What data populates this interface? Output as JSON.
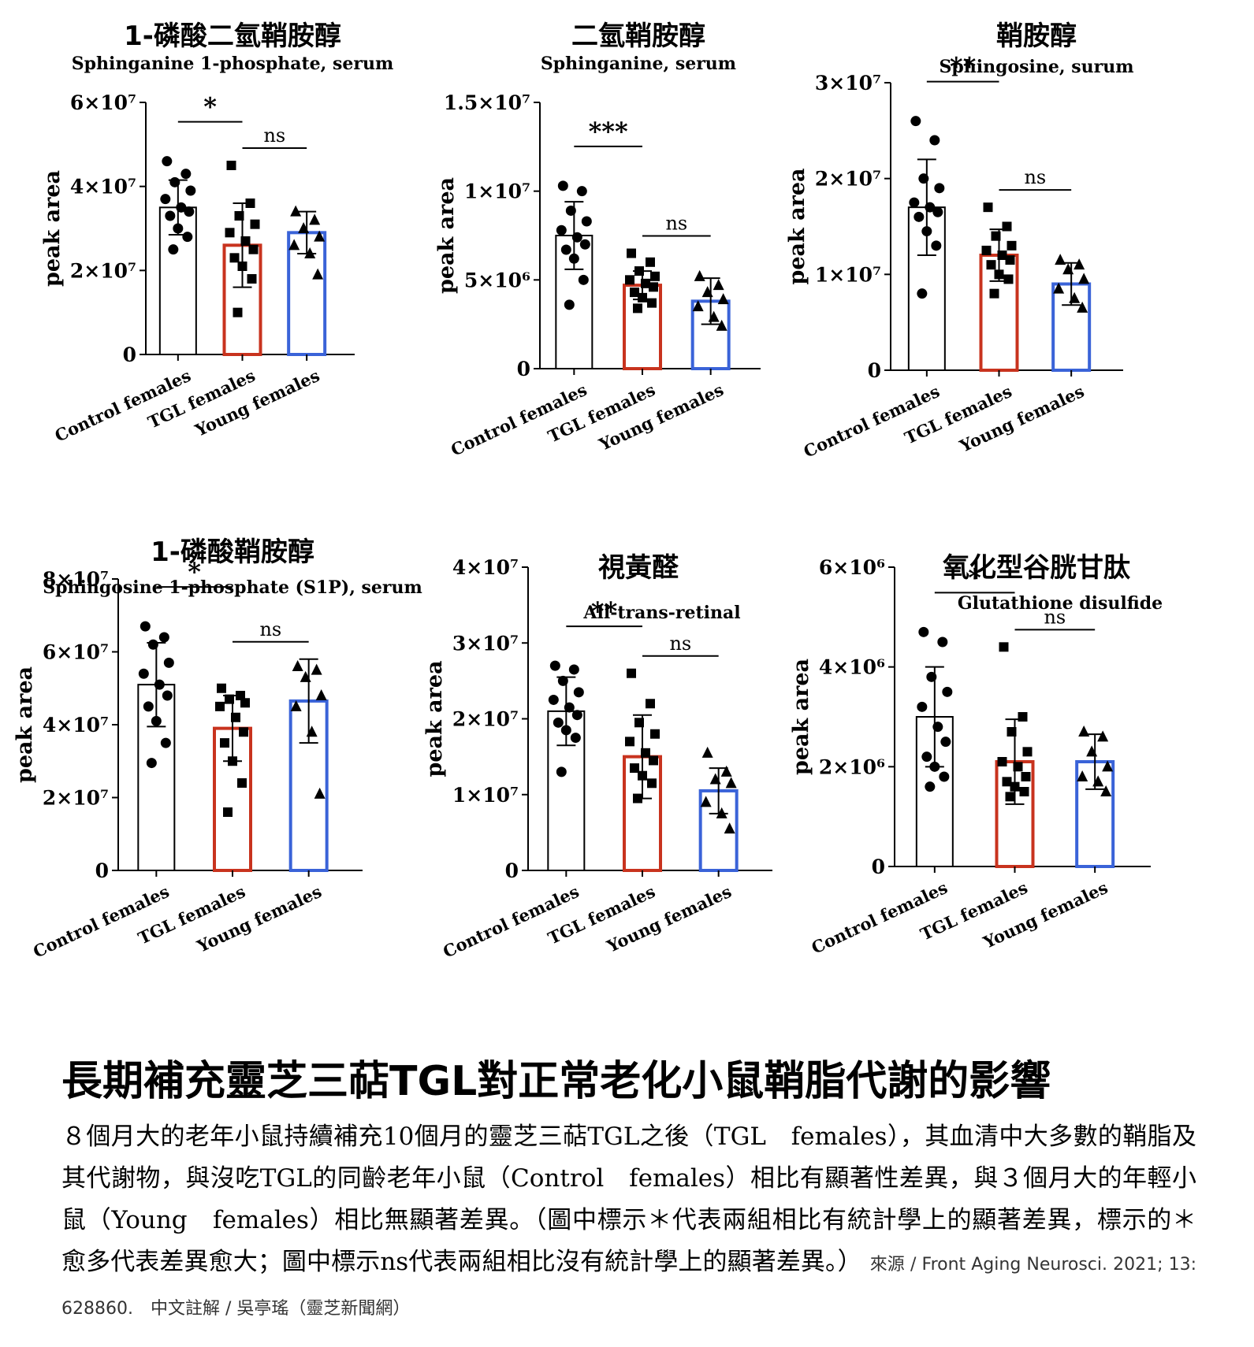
{
  "headline": "長期補充靈芝三萜TGL對正常老化小鼠鞘脂代謝的影響",
  "paragraph": "８個月大的老年小鼠持續補充10個月的靈芝三萜TGL之後（TGL　females），其血清中大多數的鞘脂及其代謝物，與沒吃TGL的同齡老年小鼠（Control　females）相比有顯著性差異，與３個月大的年輕小鼠（Young　females）相比無顯著差異。（圖中標示＊代表兩組相比有統計學上的顯著差異，標示的＊愈多代表差異愈大；圖中標示ns代表兩組相比沒有統計學上的顯著差異。）",
  "source": "來源 / Front Aging Neurosci. 2021; 13: 628860.　中文註解 / 吳亭瑤（靈芝新聞網）",
  "colors": {
    "control": "#000000",
    "tgl": "#c8331e",
    "young": "#3a63d8"
  },
  "chart_data": [
    {
      "type": "bar",
      "title_zh": "1-磷酸二氫鞘胺醇",
      "title": "Sphinganine 1-phosphate, serum",
      "ylabel": "peak area",
      "ylim": [
        0,
        60000000
      ],
      "yticks": [
        0,
        20000000,
        40000000,
        60000000
      ],
      "ytick_labels": [
        "0",
        "2×10⁷",
        "4×10⁷",
        "6×10⁷"
      ],
      "categories": [
        "Control females",
        "TGL females",
        "Young females"
      ],
      "values": [
        35000000,
        26000000,
        29000000
      ],
      "errors": [
        6500000,
        10000000,
        5000000
      ],
      "markers": [
        "circle",
        "square",
        "triangle"
      ],
      "points": [
        [
          46000000,
          43000000,
          41000000,
          39000000,
          37000000,
          35000000,
          34000000,
          33000000,
          30000000,
          28000000,
          25000000
        ],
        [
          45000000,
          36000000,
          33000000,
          31000000,
          29000000,
          27000000,
          25000000,
          23000000,
          21000000,
          18000000,
          10000000
        ],
        [
          34000000,
          32000000,
          30000000,
          28000000,
          26000000,
          24000000,
          19000000
        ]
      ],
      "significance": [
        {
          "from": 0,
          "to": 1,
          "label": "*"
        },
        {
          "from": 1,
          "to": 2,
          "label": "ns"
        }
      ]
    },
    {
      "type": "bar",
      "title_zh": "二氫鞘胺醇",
      "title": "Sphinganine, serum",
      "ylabel": "peak area",
      "ylim": [
        0,
        15000000
      ],
      "yticks": [
        0,
        5000000,
        10000000,
        15000000
      ],
      "ytick_labels": [
        "0",
        "5×10⁶",
        "1×10⁷",
        "1.5×10⁷"
      ],
      "categories": [
        "Control females",
        "TGL females",
        "Young females"
      ],
      "values": [
        7500000,
        4700000,
        3800000
      ],
      "errors": [
        1900000,
        800000,
        1300000
      ],
      "markers": [
        "circle",
        "square",
        "triangle"
      ],
      "points": [
        [
          10300000,
          10000000,
          8900000,
          8300000,
          7800000,
          7400000,
          7000000,
          6700000,
          6200000,
          5000000,
          3600000
        ],
        [
          6500000,
          6000000,
          5500000,
          5200000,
          5000000,
          4800000,
          4600000,
          4300000,
          4000000,
          3700000,
          3400000
        ],
        [
          5200000,
          4700000,
          4300000,
          3900000,
          3500000,
          2900000,
          2400000
        ]
      ],
      "significance": [
        {
          "from": 0,
          "to": 1,
          "label": "***"
        },
        {
          "from": 1,
          "to": 2,
          "label": "ns"
        }
      ]
    },
    {
      "type": "bar",
      "title_zh": "鞘胺醇",
      "title": "Sphingosine, surum",
      "ylabel": "peak area",
      "ylim": [
        0,
        30000000
      ],
      "yticks": [
        0,
        10000000,
        20000000,
        30000000
      ],
      "ytick_labels": [
        "0",
        "1×10⁷",
        "2×10⁷",
        "3×10⁷"
      ],
      "categories": [
        "Control females",
        "TGL females",
        "Young females"
      ],
      "values": [
        17000000,
        12000000,
        9000000
      ],
      "errors": [
        5000000,
        2700000,
        2200000
      ],
      "markers": [
        "circle",
        "square",
        "triangle"
      ],
      "points": [
        [
          26000000,
          24000000,
          20000000,
          19000000,
          17500000,
          17000000,
          16500000,
          16000000,
          14500000,
          13000000,
          8000000
        ],
        [
          17000000,
          15000000,
          14000000,
          13000000,
          12500000,
          12000000,
          11500000,
          11000000,
          10000000,
          9500000,
          8000000
        ],
        [
          11500000,
          11000000,
          10500000,
          9500000,
          8500000,
          7500000,
          6500000
        ]
      ],
      "significance": [
        {
          "from": 0,
          "to": 1,
          "label": "**"
        },
        {
          "from": 1,
          "to": 2,
          "label": "ns"
        }
      ]
    },
    {
      "type": "bar",
      "title_zh": "1-磷酸鞘胺醇",
      "title": "Sphingosine 1-phosphate (S1P), serum",
      "ylabel": "peak area",
      "ylim": [
        0,
        80000000
      ],
      "yticks": [
        0,
        20000000,
        40000000,
        60000000,
        80000000
      ],
      "ytick_labels": [
        "0",
        "2×10⁷",
        "4×10⁷",
        "6×10⁷",
        "8×10⁷"
      ],
      "categories": [
        "Control females",
        "TGL females",
        "Young females"
      ],
      "values": [
        51000000,
        39000000,
        46500000
      ],
      "errors": [
        11500000,
        9000000,
        11500000
      ],
      "markers": [
        "circle",
        "square",
        "triangle"
      ],
      "points": [
        [
          67000000,
          64000000,
          62000000,
          57000000,
          54000000,
          51000000,
          48000000,
          45000000,
          41000000,
          35000000,
          29500000
        ],
        [
          50000000,
          48000000,
          47000000,
          46000000,
          45000000,
          42000000,
          38000000,
          35000000,
          30000000,
          24000000,
          16000000
        ],
        [
          56000000,
          55000000,
          53000000,
          48000000,
          45000000,
          38000000,
          21000000
        ]
      ],
      "significance": [
        {
          "from": 0,
          "to": 1,
          "label": "*"
        },
        {
          "from": 1,
          "to": 2,
          "label": "ns"
        }
      ]
    },
    {
      "type": "bar",
      "title_zh": "視黃醛",
      "title": "All-trans-retinal",
      "ylabel": "peak area",
      "ylim": [
        0,
        40000000
      ],
      "yticks": [
        0,
        10000000,
        20000000,
        30000000,
        40000000
      ],
      "ytick_labels": [
        "0",
        "1×10⁷",
        "2×10⁷",
        "3×10⁷",
        "4×10⁷"
      ],
      "categories": [
        "Control females",
        "TGL females",
        "Young females"
      ],
      "values": [
        21000000,
        15000000,
        10500000
      ],
      "errors": [
        4500000,
        5500000,
        3000000
      ],
      "markers": [
        "circle",
        "square",
        "triangle"
      ],
      "points": [
        [
          27000000,
          26500000,
          25000000,
          23500000,
          22500000,
          21500000,
          20500000,
          19500000,
          18500000,
          17500000,
          13000000
        ],
        [
          26000000,
          22000000,
          19500000,
          18000000,
          17000000,
          15500000,
          14500000,
          13500000,
          12500000,
          11500000,
          9500000
        ],
        [
          15500000,
          13000000,
          12000000,
          11500000,
          9000000,
          7500000,
          5500000
        ]
      ],
      "significance": [
        {
          "from": 0,
          "to": 1,
          "label": "**"
        },
        {
          "from": 1,
          "to": 2,
          "label": "ns"
        }
      ]
    },
    {
      "type": "bar",
      "title_zh": "氧化型谷胱甘肽",
      "title": "Glutathione disulfide",
      "ylabel": "peak area",
      "ylim": [
        0,
        6000000
      ],
      "yticks": [
        0,
        2000000,
        4000000,
        6000000
      ],
      "ytick_labels": [
        "0",
        "2×10⁶",
        "4×10⁶",
        "6×10⁶"
      ],
      "categories": [
        "Control females",
        "TGL females",
        "Young females"
      ],
      "values": [
        3000000,
        2100000,
        2100000
      ],
      "errors": [
        1000000,
        850000,
        550000
      ],
      "markers": [
        "circle",
        "square",
        "triangle"
      ],
      "points": [
        [
          4700000,
          4500000,
          3800000,
          3500000,
          3200000,
          2800000,
          2500000,
          2200000,
          2000000,
          1800000,
          1600000
        ],
        [
          4400000,
          3000000,
          2700000,
          2300000,
          2100000,
          2000000,
          1800000,
          1700000,
          1600000,
          1500000,
          1400000
        ],
        [
          2700000,
          2600000,
          2300000,
          2000000,
          1800000,
          1700000,
          1500000
        ]
      ],
      "significance": [
        {
          "from": 0,
          "to": 1,
          "label": "*"
        },
        {
          "from": 1,
          "to": 2,
          "label": "ns"
        }
      ]
    }
  ]
}
